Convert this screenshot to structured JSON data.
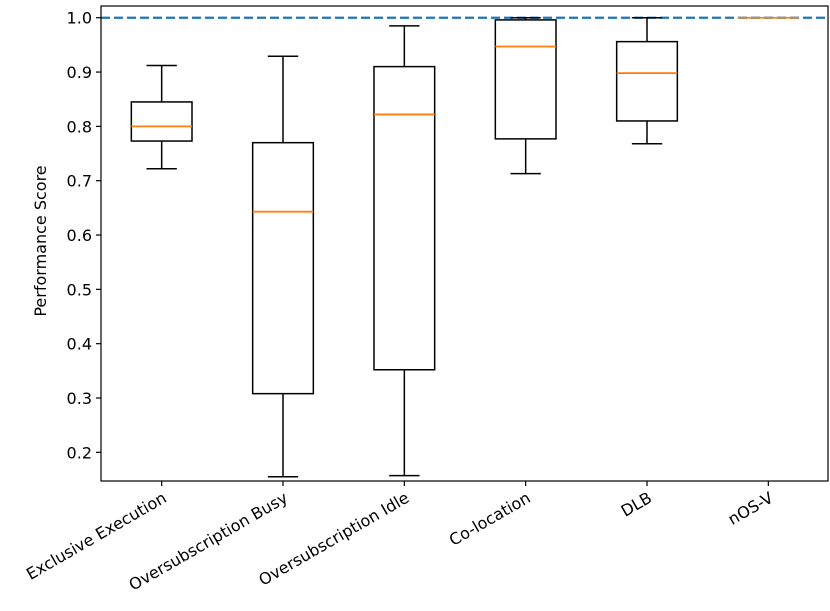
{
  "chart_data": {
    "type": "box",
    "title": "",
    "xlabel": "",
    "ylabel": "Performance Score",
    "ylim": [
      0.15,
      1.0
    ],
    "yticks": [
      0.2,
      0.3,
      0.4,
      0.5,
      0.6,
      0.7,
      0.8,
      0.9,
      1.0
    ],
    "ytick_labels": [
      "0.2",
      "0.3",
      "0.4",
      "0.5",
      "0.6",
      "0.7",
      "0.8",
      "0.9",
      "1.0"
    ],
    "reference_line": {
      "y": 1.0,
      "style": "dashed",
      "color": "#1f77b4"
    },
    "colors": {
      "box": "#000000",
      "median": "#ff7f0e"
    },
    "categories": [
      "Exclusive Execution",
      "Oversubscription Busy",
      "Oversubscription Idle",
      "Co-location",
      "DLB",
      "nOS-V"
    ],
    "boxes": [
      {
        "whisker_low": 0.722,
        "q1": 0.773,
        "median": 0.8,
        "q3": 0.845,
        "whisker_high": 0.912
      },
      {
        "whisker_low": 0.155,
        "q1": 0.308,
        "median": 0.643,
        "q3": 0.77,
        "whisker_high": 0.929
      },
      {
        "whisker_low": 0.157,
        "q1": 0.352,
        "median": 0.822,
        "q3": 0.91,
        "whisker_high": 0.985
      },
      {
        "whisker_low": 0.713,
        "q1": 0.777,
        "median": 0.947,
        "q3": 0.996,
        "whisker_high": 1.0
      },
      {
        "whisker_low": 0.768,
        "q1": 0.81,
        "median": 0.898,
        "q3": 0.956,
        "whisker_high": 1.0
      },
      {
        "whisker_low": 1.0,
        "q1": 1.0,
        "median": 1.0,
        "q3": 1.0,
        "whisker_high": 1.0
      }
    ]
  }
}
